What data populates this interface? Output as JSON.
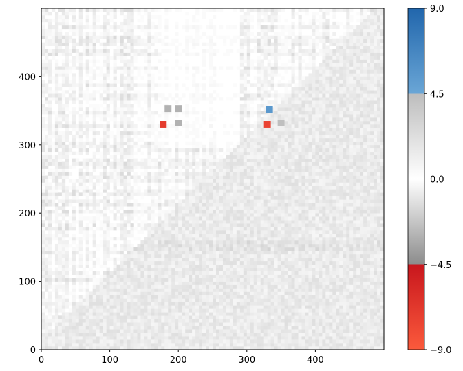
{
  "chart_data": {
    "type": "heatmap",
    "title": "",
    "xlabel": "",
    "ylabel": "",
    "xlim": [
      0,
      500
    ],
    "ylim": [
      0,
      500
    ],
    "x_ticks": [
      0,
      100,
      200,
      300,
      400
    ],
    "y_ticks": [
      0,
      100,
      200,
      300,
      400
    ],
    "grid": false,
    "colorbar": {
      "range": [
        -9.0,
        9.0
      ],
      "ticks": [
        9.0,
        4.5,
        0.0,
        -4.5,
        -9.0
      ],
      "tick_labels": [
        "9.0",
        "4.5",
        "0.0",
        "−4.5",
        "−9.0"
      ],
      "color_stops": [
        {
          "value": 9.0,
          "color": "#2166ac"
        },
        {
          "value": 4.5,
          "color": "#6aa6d6"
        },
        {
          "value": 4.5,
          "color": "#bdbdbd"
        },
        {
          "value": 0.0,
          "color": "#ffffff"
        },
        {
          "value": -4.5,
          "color": "#8c8c8c"
        },
        {
          "value": -4.5,
          "color": "#c8161d"
        },
        {
          "value": -9.0,
          "color": "#fb5a3c"
        }
      ]
    },
    "description": "Matrix of values mostly near 0 with faint gray texture; upper-left triangle above the diagonal shows a banded block pattern; small high-magnitude spots near (180,330) negative and (330,350) positive / (330,330) negative.",
    "hotspots": [
      {
        "x": 178,
        "y": 330,
        "value": -7.0
      },
      {
        "x": 330,
        "y": 330,
        "value": -7.5
      },
      {
        "x": 333,
        "y": 352,
        "value": 5.5
      },
      {
        "x": 185,
        "y": 353,
        "value": -3.0
      },
      {
        "x": 200,
        "y": 353,
        "value": -3.0
      },
      {
        "x": 200,
        "y": 332,
        "value": -3.0
      },
      {
        "x": 350,
        "y": 332,
        "value": -2.5
      }
    ]
  }
}
